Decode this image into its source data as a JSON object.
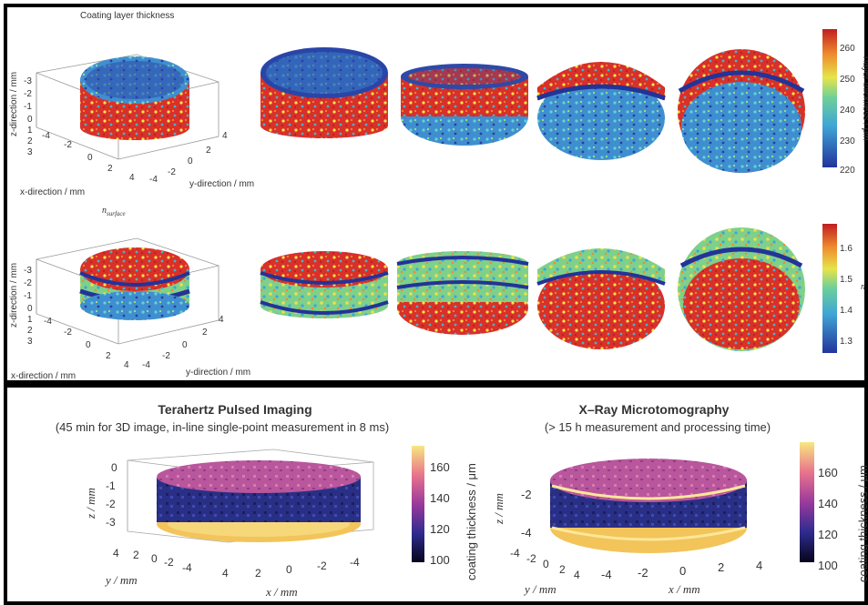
{
  "colors": {
    "low": "#23349b",
    "mid": "#43b5c9",
    "mid_high": "#e6e44a",
    "high": "#d42b2a",
    "magma_low": "#0b0620",
    "magma_mid": "#b73779",
    "magma_high": "#fcfdbf"
  },
  "top": {
    "row1": {
      "title": "Coating layer thickness",
      "x_label": "x-direction / mm",
      "y_label": "y-direction / mm",
      "z_label": "z-direction / mm",
      "z_ticks": [
        "-3",
        "-2",
        "-1",
        "0",
        "1",
        "2",
        "3"
      ],
      "x_ticks": [
        "-4",
        "-2",
        "0",
        "2",
        "4"
      ],
      "y_ticks": [
        "-4",
        "-2",
        "0",
        "2",
        "4"
      ],
      "colorbar_ticks": [
        "260",
        "250",
        "240",
        "230",
        "220"
      ],
      "colorbar_label": "Tlayer thickness / μm"
    },
    "row2": {
      "title": "n",
      "title_sub": "surface",
      "x_label": "x-direction / mm",
      "y_label": "y-direction / mm",
      "z_label": "z-direction / mm",
      "z_ticks": [
        "-3",
        "-2",
        "-1",
        "0",
        "1",
        "2",
        "3"
      ],
      "x_ticks": [
        "-4",
        "-2",
        "0",
        "2",
        "4"
      ],
      "y_ticks": [
        "-4",
        "-2",
        "0",
        "2",
        "4"
      ],
      "colorbar_ticks": [
        "1.6",
        "1.5",
        "1.4",
        "1.3"
      ],
      "colorbar_label": "n"
    }
  },
  "bottom": {
    "left": {
      "title": "Terahertz Pulsed Imaging",
      "subtitle": "(45 min for 3D image, in-line single-point measurement in 8 ms)",
      "z_label": "z / mm",
      "y_label": "y / mm",
      "x_label": "x / mm",
      "z_ticks": [
        "0",
        "-1",
        "-2",
        "-3"
      ],
      "y_ticks": [
        "4",
        "2",
        "0",
        "-2",
        "-4"
      ],
      "x_ticks": [
        "4",
        "2",
        "0",
        "-2",
        "-4"
      ],
      "colorbar_ticks": [
        "160",
        "140",
        "120",
        "100"
      ],
      "colorbar_label": "coating thickness / μm"
    },
    "right": {
      "title": "X–Ray Microtomography",
      "subtitle": "(> 15 h measurement and processing time)",
      "z_label": "z / mm",
      "y_label": "y / mm",
      "x_label": "x / mm",
      "z_ticks": [
        "-2",
        "-4"
      ],
      "x_ticks": [
        "-4",
        "-2",
        "0",
        "2",
        "4"
      ],
      "y_ticks": [
        "-4",
        "-2",
        "0",
        "2",
        "4"
      ],
      "colorbar_ticks": [
        "160",
        "140",
        "120",
        "100"
      ],
      "colorbar_label": "coating thickness / μm"
    }
  }
}
